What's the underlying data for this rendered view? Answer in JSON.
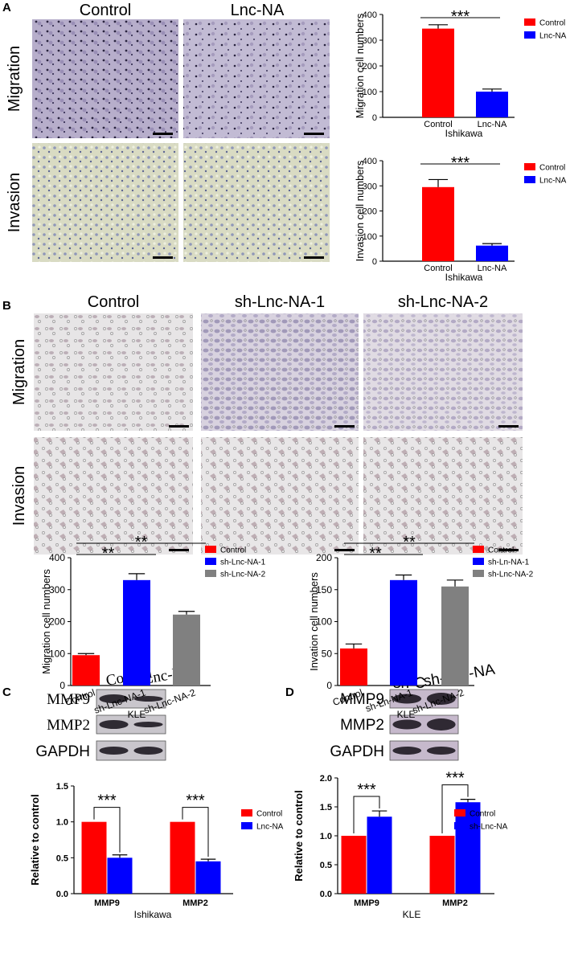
{
  "figure": {
    "panel_labels": [
      "A",
      "B",
      "C",
      "D"
    ],
    "A": {
      "columns": [
        "Control",
        "Lnc-NA"
      ],
      "rows": [
        "Migration",
        "Invasion"
      ]
    },
    "B": {
      "columns": [
        "Control",
        "sh-Lnc-NA-1",
        "sh-Lnc-NA-2"
      ],
      "rows": [
        "Migration",
        "Invasion"
      ]
    },
    "C": {
      "lanes": [
        "Control",
        "Lnc-NA"
      ],
      "bands": [
        "MMP9",
        "MMP2",
        "GAPDH"
      ]
    },
    "D": {
      "lanes": [
        "sh-C",
        "sh-Lnc-NA"
      ],
      "bands": [
        "MMP9",
        "MMP2",
        "GAPDH"
      ]
    }
  },
  "chart_data": [
    {
      "type": "bar",
      "ylabel": "Migration cell numbers",
      "xlabel": "Ishikawa",
      "categories": [
        "Control",
        "Lnc-NA"
      ],
      "values": [
        345,
        100
      ],
      "errors": [
        15,
        10
      ],
      "colors": [
        "#ff0000",
        "#0000ff"
      ],
      "ylim": [
        0,
        400
      ],
      "yticks": [
        0,
        100,
        200,
        300,
        400
      ],
      "annotations": [
        "***"
      ],
      "legend": "upper right"
    },
    {
      "type": "bar",
      "ylabel": "Invasion cell numbers",
      "xlabel": "Ishikawa",
      "categories": [
        "Control",
        "Lnc-NA"
      ],
      "values": [
        295,
        62
      ],
      "errors": [
        30,
        8
      ],
      "colors": [
        "#ff0000",
        "#0000ff"
      ],
      "ylim": [
        0,
        400
      ],
      "yticks": [
        0,
        100,
        200,
        300,
        400
      ],
      "annotations": [
        "***"
      ],
      "legend": "upper right"
    },
    {
      "type": "bar",
      "ylabel": "Migration cell numbers",
      "xlabel": "KLE",
      "categories": [
        "Control",
        "sh-Lnc-NA-1",
        "sh-Lnc-NA-2"
      ],
      "values": [
        95,
        330,
        222
      ],
      "errors": [
        5,
        20,
        10
      ],
      "colors": [
        "#ff0000",
        "#0000ff",
        "#808080"
      ],
      "ylim": [
        0,
        400
      ],
      "yticks": [
        0,
        100,
        200,
        300,
        400
      ],
      "annotations": [
        "**",
        "**"
      ],
      "legend": "upper right"
    },
    {
      "type": "bar",
      "ylabel": "Invation cell numbers",
      "xlabel": "KLE",
      "categories": [
        "Control",
        "sh-Ln-NA-1",
        "sh-Lnc-NA-2"
      ],
      "values": [
        58,
        165,
        155
      ],
      "errors": [
        7,
        8,
        10
      ],
      "colors": [
        "#ff0000",
        "#0000ff",
        "#808080"
      ],
      "ylim": [
        0,
        200
      ],
      "yticks": [
        0,
        50,
        100,
        150,
        200
      ],
      "annotations": [
        "**",
        "**"
      ],
      "legend": "upper right"
    },
    {
      "type": "grouped_bar",
      "ylabel": "Relative to control",
      "xlabel": "Ishikawa",
      "categories": [
        "MMP9",
        "MMP2"
      ],
      "series": [
        {
          "name": "Control",
          "color": "#ff0000",
          "values": [
            1,
            1
          ],
          "errors": [
            0,
            0
          ]
        },
        {
          "name": "Lnc-NA",
          "color": "#0000ff",
          "values": [
            0.5,
            0.45
          ],
          "errors": [
            0.04,
            0.03
          ]
        }
      ],
      "ylim": [
        0,
        1.5
      ],
      "yticks": [
        {
          "value": 0,
          "label": "0.0"
        },
        {
          "value": 0.5,
          "label": "0.5"
        },
        {
          "value": 1,
          "label": "1.0"
        },
        {
          "value": 1.5,
          "label": "1.5"
        }
      ],
      "annotations": [
        "***",
        "***"
      ],
      "legend": "right"
    },
    {
      "type": "grouped_bar",
      "ylabel": "Relative to control",
      "xlabel": "KLE",
      "categories": [
        "MMP9",
        "MMP2"
      ],
      "series": [
        {
          "name": "Control",
          "color": "#ff0000",
          "values": [
            1,
            1
          ],
          "errors": [
            0,
            0
          ]
        },
        {
          "name": "sh-Lnc-NA",
          "color": "#0000ff",
          "values": [
            1.33,
            1.58
          ],
          "errors": [
            0.1,
            0.05
          ]
        }
      ],
      "ylim": [
        0,
        2
      ],
      "yticks": [
        {
          "value": 0,
          "label": "0.0"
        },
        {
          "value": 0.5,
          "label": "0.5"
        },
        {
          "value": 1,
          "label": "1.0"
        },
        {
          "value": 1.5,
          "label": "1.5"
        },
        {
          "value": 2,
          "label": "2.0"
        }
      ],
      "annotations": [
        "***",
        "***"
      ],
      "legend": "right"
    }
  ]
}
